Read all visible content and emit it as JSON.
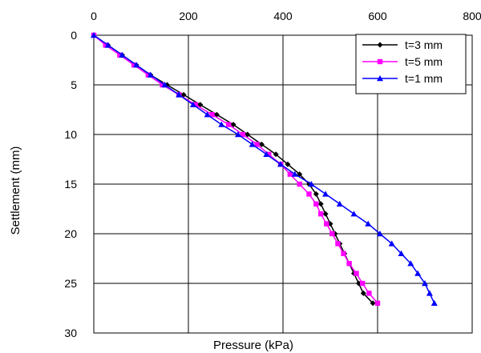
{
  "chart_data": {
    "type": "line",
    "xlabel": "Pressure (kPa)",
    "ylabel": "Settlement (mm)",
    "xlim": [
      0,
      800
    ],
    "ylim": [
      0,
      30
    ],
    "x_ticks": [
      0,
      200,
      400,
      600,
      800
    ],
    "y_ticks": [
      0,
      5,
      10,
      15,
      20,
      25,
      30
    ],
    "x_axis_position": "top",
    "y_axis_inverted": true,
    "grid": true,
    "legend_position": "top-right",
    "series": [
      {
        "name": "t=3 mm",
        "color": "#000000",
        "marker": "diamond",
        "points": [
          [
            0,
            0
          ],
          [
            30,
            1
          ],
          [
            60,
            2
          ],
          [
            90,
            3
          ],
          [
            120,
            4
          ],
          [
            155,
            5
          ],
          [
            190,
            6
          ],
          [
            225,
            7
          ],
          [
            260,
            8
          ],
          [
            295,
            9
          ],
          [
            325,
            10
          ],
          [
            355,
            11
          ],
          [
            385,
            12
          ],
          [
            410,
            13
          ],
          [
            435,
            14
          ],
          [
            455,
            15
          ],
          [
            470,
            16
          ],
          [
            480,
            17
          ],
          [
            490,
            18
          ],
          [
            500,
            19
          ],
          [
            510,
            20
          ],
          [
            520,
            21
          ],
          [
            530,
            22
          ],
          [
            540,
            23
          ],
          [
            550,
            24
          ],
          [
            560,
            25
          ],
          [
            570,
            26
          ],
          [
            590,
            27
          ]
        ]
      },
      {
        "name": "t=5 mm",
        "color": "#ff00ff",
        "marker": "square",
        "points": [
          [
            0,
            0
          ],
          [
            25,
            1
          ],
          [
            55,
            2
          ],
          [
            85,
            3
          ],
          [
            115,
            4
          ],
          [
            145,
            5
          ],
          [
            180,
            6
          ],
          [
            215,
            7
          ],
          [
            250,
            8
          ],
          [
            285,
            9
          ],
          [
            315,
            10
          ],
          [
            345,
            11
          ],
          [
            370,
            12
          ],
          [
            395,
            13
          ],
          [
            415,
            14
          ],
          [
            435,
            15
          ],
          [
            455,
            16
          ],
          [
            470,
            17
          ],
          [
            480,
            18
          ],
          [
            492,
            19
          ],
          [
            504,
            20
          ],
          [
            516,
            21
          ],
          [
            528,
            22
          ],
          [
            540,
            23
          ],
          [
            555,
            24
          ],
          [
            568,
            25
          ],
          [
            582,
            26
          ],
          [
            600,
            27
          ]
        ]
      },
      {
        "name": "t=1 mm",
        "color": "#0000ff",
        "marker": "triangle",
        "points": [
          [
            0,
            0
          ],
          [
            30,
            1
          ],
          [
            60,
            2
          ],
          [
            90,
            3
          ],
          [
            120,
            4
          ],
          [
            150,
            5
          ],
          [
            180,
            6
          ],
          [
            210,
            7
          ],
          [
            240,
            8
          ],
          [
            270,
            9
          ],
          [
            305,
            10
          ],
          [
            335,
            11
          ],
          [
            365,
            12
          ],
          [
            395,
            13
          ],
          [
            425,
            14
          ],
          [
            460,
            15
          ],
          [
            490,
            16
          ],
          [
            520,
            17
          ],
          [
            550,
            18
          ],
          [
            580,
            19
          ],
          [
            605,
            20
          ],
          [
            630,
            21
          ],
          [
            650,
            22
          ],
          [
            670,
            23
          ],
          [
            685,
            24
          ],
          [
            700,
            25
          ],
          [
            710,
            26
          ],
          [
            720,
            27
          ]
        ]
      }
    ]
  }
}
